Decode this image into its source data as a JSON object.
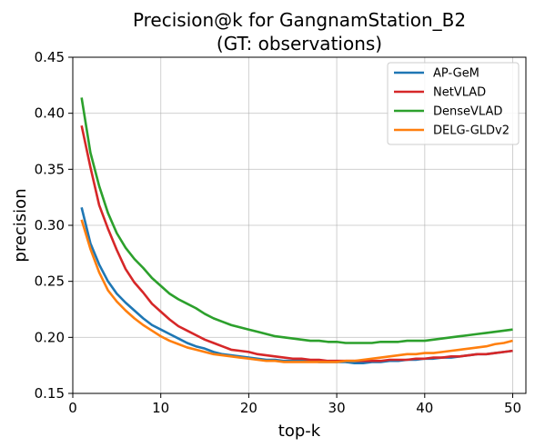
{
  "chart_data": {
    "type": "line",
    "title": "Precision@k for GangnamStation_B2",
    "subtitle": "(GT: observations)",
    "xlabel": "top-k",
    "ylabel": "precision",
    "xlim": [
      0,
      51.5
    ],
    "ylim": [
      0.15,
      0.45
    ],
    "xticks": [
      0,
      10,
      20,
      30,
      40,
      50
    ],
    "yticks": [
      0.15,
      0.2,
      0.25,
      0.3,
      0.35,
      0.4,
      0.45
    ],
    "xtick_labels": [
      "0",
      "10",
      "20",
      "30",
      "40",
      "50"
    ],
    "ytick_labels": [
      "0.15",
      "0.20",
      "0.25",
      "0.30",
      "0.35",
      "0.40",
      "0.45"
    ],
    "grid": true,
    "legend_position": "top-right",
    "series": [
      {
        "name": "AP-GeM",
        "color": "#1f77b4",
        "x": [
          1,
          2,
          3,
          4,
          5,
          6,
          7,
          8,
          9,
          10,
          11,
          12,
          13,
          14,
          15,
          16,
          17,
          18,
          19,
          20,
          21,
          22,
          23,
          24,
          25,
          26,
          27,
          28,
          29,
          30,
          31,
          32,
          33,
          34,
          35,
          36,
          37,
          38,
          39,
          40,
          41,
          42,
          43,
          44,
          45,
          46,
          47,
          48,
          49,
          50
        ],
        "values": [
          0.316,
          0.284,
          0.265,
          0.25,
          0.239,
          0.231,
          0.224,
          0.217,
          0.211,
          0.207,
          0.203,
          0.199,
          0.195,
          0.192,
          0.19,
          0.187,
          0.185,
          0.184,
          0.183,
          0.182,
          0.181,
          0.18,
          0.18,
          0.179,
          0.179,
          0.179,
          0.179,
          0.178,
          0.178,
          0.178,
          0.178,
          0.177,
          0.177,
          0.178,
          0.178,
          0.179,
          0.179,
          0.18,
          0.18,
          0.181,
          0.181,
          0.182,
          0.182,
          0.183,
          0.184,
          0.185,
          0.185,
          0.186,
          0.187,
          0.188
        ]
      },
      {
        "name": "NetVLAD",
        "color": "#d62728",
        "x": [
          1,
          2,
          3,
          4,
          5,
          6,
          7,
          8,
          9,
          10,
          11,
          12,
          13,
          14,
          15,
          16,
          17,
          18,
          19,
          20,
          21,
          22,
          23,
          24,
          25,
          26,
          27,
          28,
          29,
          30,
          31,
          32,
          33,
          34,
          35,
          36,
          37,
          38,
          39,
          40,
          41,
          42,
          43,
          44,
          45,
          46,
          47,
          48,
          49,
          50
        ],
        "values": [
          0.389,
          0.352,
          0.318,
          0.297,
          0.278,
          0.261,
          0.249,
          0.24,
          0.23,
          0.223,
          0.216,
          0.21,
          0.206,
          0.202,
          0.198,
          0.195,
          0.192,
          0.189,
          0.188,
          0.187,
          0.185,
          0.184,
          0.183,
          0.182,
          0.181,
          0.181,
          0.18,
          0.18,
          0.179,
          0.179,
          0.179,
          0.179,
          0.179,
          0.179,
          0.179,
          0.18,
          0.18,
          0.18,
          0.181,
          0.181,
          0.182,
          0.182,
          0.183,
          0.183,
          0.184,
          0.185,
          0.185,
          0.186,
          0.187,
          0.188
        ]
      },
      {
        "name": "DenseVLAD",
        "color": "#2ca02c",
        "x": [
          1,
          2,
          3,
          4,
          5,
          6,
          7,
          8,
          9,
          10,
          11,
          12,
          13,
          14,
          15,
          16,
          17,
          18,
          19,
          20,
          21,
          22,
          23,
          24,
          25,
          26,
          27,
          28,
          29,
          30,
          31,
          32,
          33,
          34,
          35,
          36,
          37,
          38,
          39,
          40,
          41,
          42,
          43,
          44,
          45,
          46,
          47,
          48,
          49,
          50
        ],
        "values": [
          0.414,
          0.365,
          0.335,
          0.311,
          0.293,
          0.28,
          0.27,
          0.262,
          0.253,
          0.246,
          0.239,
          0.234,
          0.23,
          0.226,
          0.221,
          0.217,
          0.214,
          0.211,
          0.209,
          0.207,
          0.205,
          0.203,
          0.201,
          0.2,
          0.199,
          0.198,
          0.197,
          0.197,
          0.196,
          0.196,
          0.195,
          0.195,
          0.195,
          0.195,
          0.196,
          0.196,
          0.196,
          0.197,
          0.197,
          0.197,
          0.198,
          0.199,
          0.2,
          0.201,
          0.202,
          0.203,
          0.204,
          0.205,
          0.206,
          0.207
        ]
      },
      {
        "name": "DELG-GLDv2",
        "color": "#ff7f0e",
        "x": [
          1,
          2,
          3,
          4,
          5,
          6,
          7,
          8,
          9,
          10,
          11,
          12,
          13,
          14,
          15,
          16,
          17,
          18,
          19,
          20,
          21,
          22,
          23,
          24,
          25,
          26,
          27,
          28,
          29,
          30,
          31,
          32,
          33,
          34,
          35,
          36,
          37,
          38,
          39,
          40,
          41,
          42,
          43,
          44,
          45,
          46,
          47,
          48,
          49,
          50
        ],
        "values": [
          0.305,
          0.279,
          0.258,
          0.242,
          0.232,
          0.224,
          0.217,
          0.211,
          0.206,
          0.201,
          0.197,
          0.194,
          0.191,
          0.189,
          0.187,
          0.185,
          0.184,
          0.183,
          0.182,
          0.181,
          0.18,
          0.179,
          0.179,
          0.178,
          0.178,
          0.178,
          0.178,
          0.178,
          0.178,
          0.178,
          0.179,
          0.179,
          0.18,
          0.181,
          0.182,
          0.183,
          0.184,
          0.185,
          0.185,
          0.186,
          0.186,
          0.187,
          0.188,
          0.189,
          0.19,
          0.191,
          0.192,
          0.194,
          0.195,
          0.197
        ]
      }
    ]
  }
}
